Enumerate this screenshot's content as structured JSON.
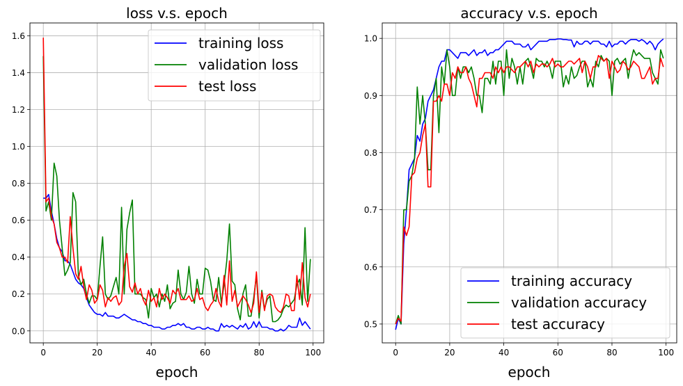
{
  "chart_data": [
    {
      "type": "line",
      "title": "loss v.s. epoch",
      "xlabel": "epoch",
      "ylabel": "",
      "xlim": [
        -4.95,
        103.95
      ],
      "ylim": [
        -0.065,
        1.67
      ],
      "xticks": [
        0,
        20,
        40,
        60,
        80,
        100
      ],
      "yticks": [
        0.0,
        0.2,
        0.4,
        0.6,
        0.8,
        1.0,
        1.2,
        1.4,
        1.6
      ],
      "ytick_labels": [
        "0.0",
        "0.2",
        "0.4",
        "0.6",
        "0.8",
        "1.0",
        "1.2",
        "1.4",
        "1.6"
      ],
      "grid": true,
      "legend_position": "top-right",
      "series": [
        {
          "name": "training loss",
          "color": "#0000ff",
          "values": [
            0.72,
            0.72,
            0.74,
            0.65,
            0.58,
            0.5,
            0.45,
            0.43,
            0.38,
            0.38,
            0.36,
            0.32,
            0.28,
            0.26,
            0.25,
            0.23,
            0.18,
            0.14,
            0.12,
            0.1,
            0.09,
            0.09,
            0.08,
            0.1,
            0.08,
            0.08,
            0.08,
            0.07,
            0.07,
            0.08,
            0.09,
            0.08,
            0.07,
            0.06,
            0.06,
            0.05,
            0.05,
            0.04,
            0.04,
            0.03,
            0.03,
            0.02,
            0.02,
            0.02,
            0.01,
            0.01,
            0.02,
            0.02,
            0.03,
            0.03,
            0.04,
            0.03,
            0.04,
            0.02,
            0.02,
            0.01,
            0.01,
            0.02,
            0.02,
            0.01,
            0.01,
            0.02,
            0.01,
            0.01,
            0.0,
            0.0,
            0.04,
            0.02,
            0.03,
            0.02,
            0.03,
            0.02,
            0.01,
            0.03,
            0.02,
            0.04,
            0.01,
            0.02,
            0.05,
            0.02,
            0.05,
            0.02,
            0.02,
            0.02,
            0.01,
            0.01,
            0.0,
            0.0,
            0.01,
            0.0,
            0.01,
            0.03,
            0.02,
            0.02,
            0.02,
            0.07,
            0.03,
            0.05,
            0.03,
            0.01
          ]
        },
        {
          "name": "validation loss",
          "color": "#008000",
          "values": [
            1.49,
            0.65,
            0.7,
            0.6,
            0.91,
            0.84,
            0.6,
            0.45,
            0.3,
            0.33,
            0.37,
            0.75,
            0.7,
            0.3,
            0.25,
            0.28,
            0.2,
            0.15,
            0.19,
            0.19,
            0.17,
            0.35,
            0.51,
            0.2,
            0.17,
            0.19,
            0.24,
            0.29,
            0.2,
            0.67,
            0.2,
            0.55,
            0.64,
            0.71,
            0.2,
            0.2,
            0.2,
            0.18,
            0.17,
            0.07,
            0.23,
            0.18,
            0.2,
            0.13,
            0.2,
            0.16,
            0.25,
            0.12,
            0.15,
            0.16,
            0.33,
            0.2,
            0.17,
            0.21,
            0.35,
            0.2,
            0.15,
            0.28,
            0.2,
            0.2,
            0.34,
            0.33,
            0.27,
            0.17,
            0.16,
            0.29,
            0.15,
            0.25,
            0.38,
            0.58,
            0.27,
            0.25,
            0.12,
            0.06,
            0.2,
            0.25,
            0.08,
            0.08,
            0.18,
            0.3,
            0.07,
            0.22,
            0.12,
            0.17,
            0.19,
            0.05,
            0.05,
            0.06,
            0.08,
            0.12,
            0.14,
            0.13,
            0.15,
            0.17,
            0.25,
            0.28,
            0.14,
            0.56,
            0.16,
            0.39
          ]
        },
        {
          "name": "test loss",
          "color": "#ff0000",
          "values": [
            1.59,
            0.7,
            0.72,
            0.62,
            0.58,
            0.48,
            0.45,
            0.4,
            0.4,
            0.37,
            0.62,
            0.45,
            0.31,
            0.28,
            0.35,
            0.24,
            0.17,
            0.25,
            0.22,
            0.15,
            0.17,
            0.25,
            0.22,
            0.13,
            0.18,
            0.16,
            0.18,
            0.19,
            0.14,
            0.16,
            0.35,
            0.42,
            0.24,
            0.21,
            0.26,
            0.2,
            0.23,
            0.17,
            0.14,
            0.22,
            0.16,
            0.18,
            0.13,
            0.23,
            0.17,
            0.2,
            0.18,
            0.15,
            0.22,
            0.2,
            0.23,
            0.17,
            0.17,
            0.17,
            0.19,
            0.16,
            0.17,
            0.23,
            0.17,
            0.18,
            0.13,
            0.11,
            0.14,
            0.16,
            0.23,
            0.16,
            0.13,
            0.3,
            0.14,
            0.38,
            0.16,
            0.22,
            0.13,
            0.16,
            0.19,
            0.17,
            0.14,
            0.1,
            0.15,
            0.32,
            0.1,
            0.21,
            0.11,
            0.19,
            0.2,
            0.19,
            0.13,
            0.11,
            0.1,
            0.13,
            0.2,
            0.19,
            0.11,
            0.11,
            0.3,
            0.17,
            0.37,
            0.18,
            0.13,
            0.2
          ]
        }
      ]
    },
    {
      "type": "line",
      "title": "accuracy v.s. epoch",
      "xlabel": "epoch",
      "ylabel": "",
      "xlim": [
        -4.95,
        103.95
      ],
      "ylim": [
        0.467,
        1.027
      ],
      "xticks": [
        0,
        20,
        40,
        60,
        80,
        100
      ],
      "yticks": [
        0.5,
        0.6,
        0.7,
        0.8,
        0.9,
        1.0
      ],
      "ytick_labels": [
        "0.5",
        "0.6",
        "0.7",
        "0.8",
        "0.9",
        "1.0"
      ],
      "grid": true,
      "legend_position": "bottom-right",
      "series": [
        {
          "name": "training accuracy",
          "color": "#0000ff",
          "values": [
            0.49,
            0.51,
            0.5,
            0.64,
            0.7,
            0.77,
            0.78,
            0.79,
            0.83,
            0.82,
            0.85,
            0.86,
            0.89,
            0.9,
            0.91,
            0.93,
            0.95,
            0.96,
            0.96,
            0.98,
            0.98,
            0.975,
            0.97,
            0.965,
            0.975,
            0.975,
            0.975,
            0.97,
            0.975,
            0.98,
            0.97,
            0.975,
            0.975,
            0.98,
            0.97,
            0.975,
            0.975,
            0.98,
            0.98,
            0.985,
            0.99,
            0.995,
            0.995,
            0.995,
            0.99,
            0.99,
            0.99,
            0.985,
            0.985,
            0.99,
            0.98,
            0.985,
            0.99,
            0.995,
            0.995,
            0.995,
            0.995,
            0.998,
            0.998,
            0.998,
            0.999,
            0.999,
            0.998,
            0.998,
            0.997,
            0.997,
            0.985,
            0.995,
            0.99,
            0.99,
            0.995,
            0.995,
            0.99,
            0.995,
            0.995,
            0.995,
            0.99,
            0.99,
            0.985,
            0.995,
            0.985,
            0.99,
            0.99,
            0.995,
            0.995,
            0.99,
            0.995,
            0.998,
            0.998,
            0.998,
            0.995,
            0.998,
            0.995,
            0.99,
            0.995,
            0.99,
            0.98,
            0.99,
            0.995,
            0.999
          ]
        },
        {
          "name": "validation accuracy",
          "color": "#008000",
          "values": [
            0.5,
            0.515,
            0.5,
            0.7,
            0.7,
            0.75,
            0.76,
            0.79,
            0.915,
            0.85,
            0.9,
            0.85,
            0.77,
            0.77,
            0.9,
            0.93,
            0.835,
            0.95,
            0.92,
            0.98,
            0.95,
            0.9,
            0.9,
            0.95,
            0.93,
            0.95,
            0.95,
            0.94,
            0.95,
            0.93,
            0.9,
            0.9,
            0.87,
            0.93,
            0.93,
            0.92,
            0.96,
            0.92,
            0.96,
            0.96,
            0.9,
            0.98,
            0.93,
            0.965,
            0.95,
            0.92,
            0.95,
            0.92,
            0.96,
            0.965,
            0.95,
            0.93,
            0.965,
            0.96,
            0.96,
            0.95,
            0.96,
            0.95,
            0.93,
            0.96,
            0.96,
            0.96,
            0.915,
            0.935,
            0.92,
            0.95,
            0.93,
            0.935,
            0.95,
            0.96,
            0.96,
            0.915,
            0.93,
            0.915,
            0.96,
            0.95,
            0.97,
            0.96,
            0.965,
            0.96,
            0.9,
            0.96,
            0.965,
            0.955,
            0.96,
            0.965,
            0.93,
            0.96,
            0.98,
            0.97,
            0.975,
            0.97,
            0.965,
            0.965,
            0.965,
            0.94,
            0.93,
            0.92,
            0.98,
            0.965
          ]
        },
        {
          "name": "test accuracy",
          "color": "#ff0000",
          "values": [
            0.5,
            0.51,
            0.505,
            0.67,
            0.655,
            0.67,
            0.76,
            0.765,
            0.79,
            0.8,
            0.83,
            0.85,
            0.74,
            0.74,
            0.89,
            0.89,
            0.9,
            0.89,
            0.92,
            0.92,
            0.9,
            0.94,
            0.93,
            0.95,
            0.94,
            0.94,
            0.95,
            0.93,
            0.92,
            0.9,
            0.88,
            0.93,
            0.93,
            0.94,
            0.94,
            0.94,
            0.93,
            0.95,
            0.94,
            0.95,
            0.94,
            0.95,
            0.95,
            0.945,
            0.94,
            0.95,
            0.95,
            0.955,
            0.96,
            0.95,
            0.96,
            0.94,
            0.955,
            0.95,
            0.955,
            0.955,
            0.95,
            0.955,
            0.965,
            0.95,
            0.955,
            0.95,
            0.95,
            0.955,
            0.96,
            0.96,
            0.955,
            0.96,
            0.965,
            0.94,
            0.96,
            0.95,
            0.93,
            0.95,
            0.95,
            0.97,
            0.965,
            0.96,
            0.965,
            0.93,
            0.96,
            0.95,
            0.94,
            0.945,
            0.96,
            0.955,
            0.945,
            0.95,
            0.96,
            0.955,
            0.95,
            0.93,
            0.93,
            0.94,
            0.95,
            0.92,
            0.93,
            0.93,
            0.965,
            0.95
          ]
        }
      ]
    }
  ]
}
